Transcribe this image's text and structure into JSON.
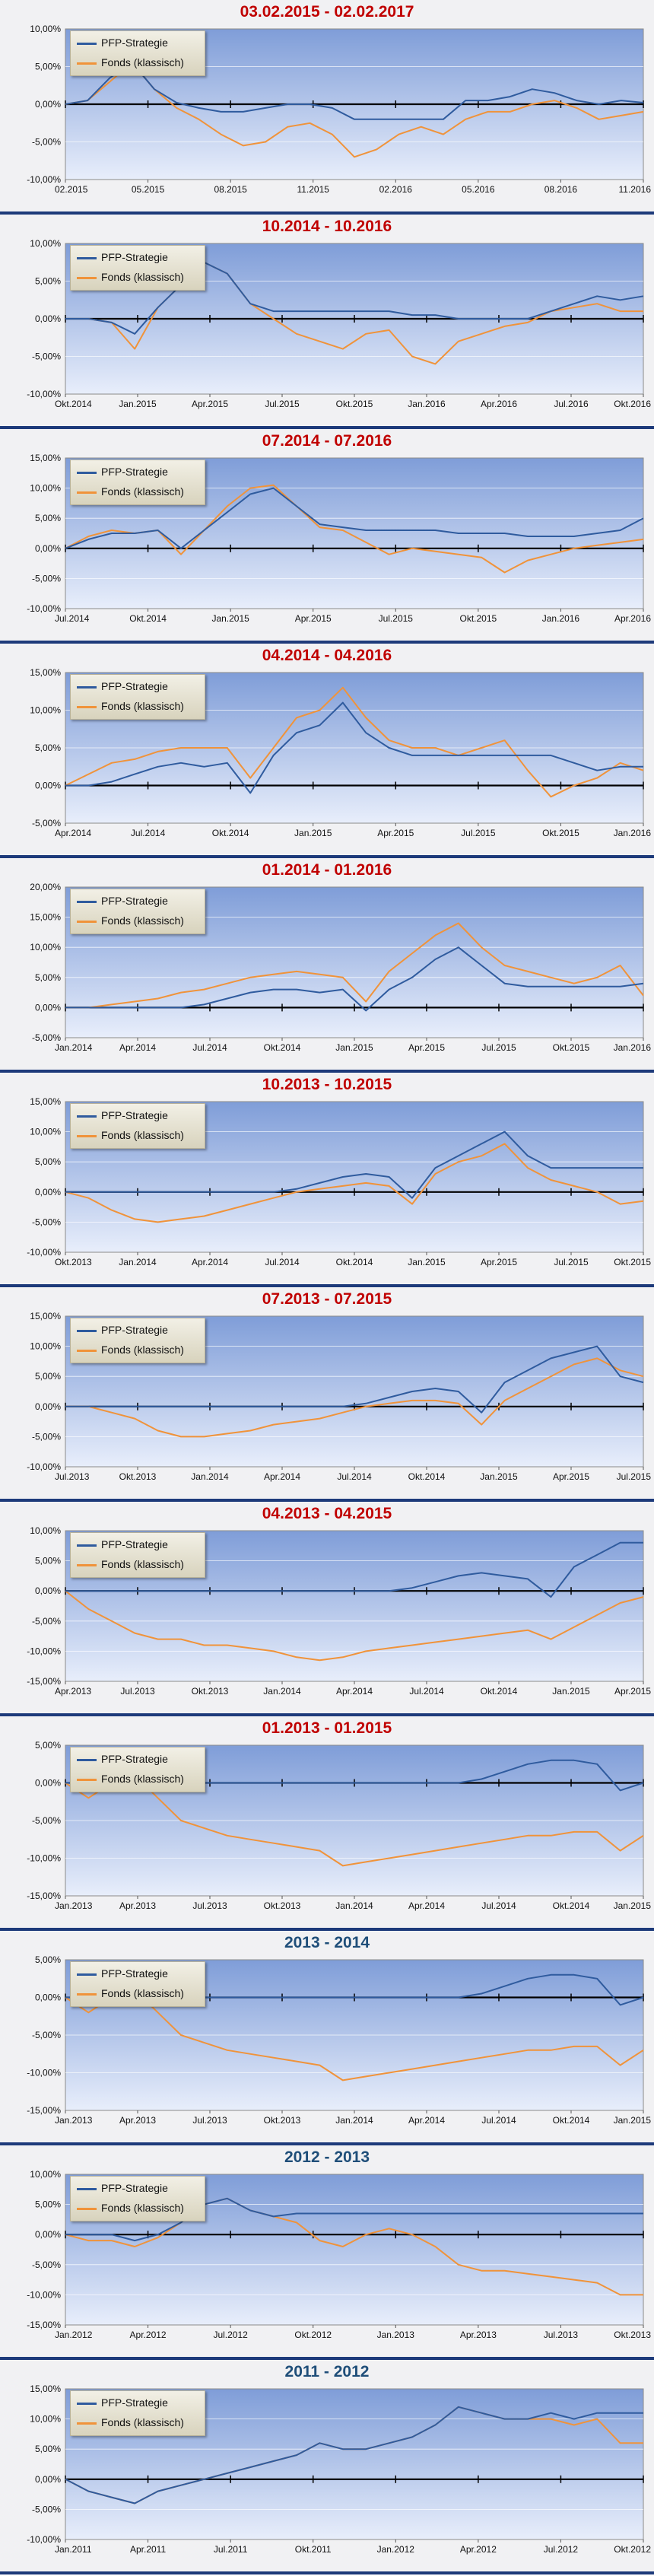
{
  "chart_data": [
    {
      "type": "line",
      "title": "03.02.2015 - 02.02.2017",
      "title_color": "#c00000",
      "ylim": [
        -10,
        10
      ],
      "yticks": [
        -10,
        -5,
        0,
        5,
        10
      ],
      "xticks": [
        "02.2015",
        "05.2015",
        "08.2015",
        "11.2015",
        "02.2016",
        "05.2016",
        "08.2016",
        "11.2016"
      ],
      "series": [
        {
          "name": "PFP-Strategie",
          "color": "#2f5b9e",
          "values": [
            0,
            0.5,
            3.5,
            5.5,
            2,
            0.2,
            -0.5,
            -1,
            -1,
            -0.5,
            0,
            0,
            -0.5,
            -2,
            -2,
            -2,
            -2,
            -2,
            0.5,
            0.5,
            1,
            2,
            1.5,
            0.5,
            0,
            0.5,
            0.2
          ]
        },
        {
          "name": "Fonds (klassisch)",
          "color": "#f0933a",
          "values": [
            0,
            0.5,
            3,
            5.5,
            2,
            -0.5,
            -2,
            -4,
            -5.5,
            -5,
            -3,
            -2.5,
            -4,
            -7,
            -6,
            -4,
            -3,
            -4,
            -2,
            -1,
            -1,
            0,
            0.5,
            -0.5,
            -2,
            -1.5,
            -1
          ]
        }
      ]
    },
    {
      "type": "line",
      "title": "10.2014 - 10.2016",
      "title_color": "#c00000",
      "ylim": [
        -10,
        10
      ],
      "yticks": [
        -10,
        -5,
        0,
        5,
        10
      ],
      "xticks": [
        "Okt.2014",
        "Jan.2015",
        "Apr.2015",
        "Jul.2015",
        "Okt.2015",
        "Jan.2016",
        "Apr.2016",
        "Jul.2016",
        "Okt.2016"
      ],
      "series": [
        {
          "name": "PFP-Strategie",
          "color": "#2f5b9e",
          "values": [
            0,
            0,
            -0.5,
            -2,
            1.5,
            4.5,
            7.5,
            6,
            2,
            1,
            1,
            1,
            1,
            1,
            1,
            0.5,
            0.5,
            0,
            0,
            0,
            0,
            1,
            2,
            3,
            2.5,
            3
          ]
        },
        {
          "name": "Fonds (klassisch)",
          "color": "#f0933a",
          "values": [
            0,
            0,
            -0.5,
            -4,
            1.5,
            4.5,
            7.5,
            6,
            2,
            0,
            -2,
            -3,
            -4,
            -2,
            -1.5,
            -5,
            -6,
            -3,
            -2,
            -1,
            -0.5,
            1,
            1.5,
            2,
            1,
            1
          ]
        }
      ]
    },
    {
      "type": "line",
      "title": "07.2014 - 07.2016",
      "title_color": "#c00000",
      "ylim": [
        -10,
        15
      ],
      "yticks": [
        -10,
        -5,
        0,
        5,
        10,
        15
      ],
      "xticks": [
        "Jul.2014",
        "Okt.2014",
        "Jan.2015",
        "Apr.2015",
        "Jul.2015",
        "Okt.2015",
        "Jan.2016",
        "Apr.2016"
      ],
      "series": [
        {
          "name": "PFP-Strategie",
          "color": "#2f5b9e",
          "values": [
            0,
            1.5,
            2.5,
            2.5,
            3,
            0,
            3,
            6,
            9,
            10,
            7,
            4,
            3.5,
            3,
            3,
            3,
            3,
            2.5,
            2.5,
            2.5,
            2,
            2,
            2,
            2.5,
            3,
            5
          ]
        },
        {
          "name": "Fonds (klassisch)",
          "color": "#f0933a",
          "values": [
            0,
            2,
            3,
            2.5,
            3,
            -1,
            3,
            7,
            10,
            10.5,
            7,
            3.5,
            3,
            1,
            -1,
            0,
            -0.5,
            -1,
            -1.5,
            -4,
            -2,
            -1,
            0,
            0.5,
            1,
            1.5
          ]
        }
      ]
    },
    {
      "type": "line",
      "title": "04.2014 - 04.2016",
      "title_color": "#c00000",
      "ylim": [
        -5,
        15
      ],
      "yticks": [
        -5,
        0,
        5,
        10,
        15
      ],
      "xticks": [
        "Apr.2014",
        "Jul.2014",
        "Okt.2014",
        "Jan.2015",
        "Apr.2015",
        "Jul.2015",
        "Okt.2015",
        "Jan.2016"
      ],
      "series": [
        {
          "name": "PFP-Strategie",
          "color": "#2f5b9e",
          "values": [
            0,
            0,
            0.5,
            1.5,
            2.5,
            3,
            2.5,
            3,
            -1,
            4,
            7,
            8,
            11,
            7,
            5,
            4,
            4,
            4,
            4,
            4,
            4,
            4,
            3,
            2,
            2.5,
            2.5
          ]
        },
        {
          "name": "Fonds (klassisch)",
          "color": "#f0933a",
          "values": [
            0,
            1.5,
            3,
            3.5,
            4.5,
            5,
            5,
            5,
            1,
            5,
            9,
            10,
            13,
            9,
            6,
            5,
            5,
            4,
            5,
            6,
            2,
            -1.5,
            0,
            1,
            3,
            2
          ]
        }
      ]
    },
    {
      "type": "line",
      "title": "01.2014 - 01.2016",
      "title_color": "#c00000",
      "ylim": [
        -5,
        20
      ],
      "yticks": [
        -5,
        0,
        5,
        10,
        15,
        20
      ],
      "xticks": [
        "Jan.2014",
        "Apr.2014",
        "Jul.2014",
        "Okt.2014",
        "Jan.2015",
        "Apr.2015",
        "Jul.2015",
        "Okt.2015",
        "Jan.2016"
      ],
      "series": [
        {
          "name": "PFP-Strategie",
          "color": "#2f5b9e",
          "values": [
            0,
            0,
            0,
            0,
            0,
            0,
            0.5,
            1.5,
            2.5,
            3,
            3,
            2.5,
            3,
            -0.5,
            3,
            5,
            8,
            10,
            7,
            4,
            3.5,
            3.5,
            3.5,
            3.5,
            3.5,
            4
          ]
        },
        {
          "name": "Fonds (klassisch)",
          "color": "#f0933a",
          "values": [
            0,
            0,
            0.5,
            1,
            1.5,
            2.5,
            3,
            4,
            5,
            5.5,
            6,
            5.5,
            5,
            1,
            6,
            9,
            12,
            14,
            10,
            7,
            6,
            5,
            4,
            5,
            7,
            2
          ]
        }
      ]
    },
    {
      "type": "line",
      "title": "10.2013 - 10.2015",
      "title_color": "#c00000",
      "ylim": [
        -10,
        15
      ],
      "yticks": [
        -10,
        -5,
        0,
        5,
        10,
        15
      ],
      "xticks": [
        "Okt.2013",
        "Jan.2014",
        "Apr.2014",
        "Jul.2014",
        "Okt.2014",
        "Jan.2015",
        "Apr.2015",
        "Jul.2015",
        "Okt.2015"
      ],
      "series": [
        {
          "name": "PFP-Strategie",
          "color": "#2f5b9e",
          "values": [
            0,
            0,
            0,
            0,
            0,
            0,
            0,
            0,
            0,
            0,
            0.5,
            1.5,
            2.5,
            3,
            2.5,
            -1,
            4,
            6,
            8,
            10,
            6,
            4,
            4,
            4,
            4,
            4
          ]
        },
        {
          "name": "Fonds (klassisch)",
          "color": "#f0933a",
          "values": [
            0,
            -1,
            -3,
            -4.5,
            -5,
            -4.5,
            -4,
            -3,
            -2,
            -1,
            0,
            0.5,
            1,
            1.5,
            1,
            -2,
            3,
            5,
            6,
            8,
            4,
            2,
            1,
            0,
            -2,
            -1.5
          ]
        }
      ]
    },
    {
      "type": "line",
      "title": "07.2013 - 07.2015",
      "title_color": "#c00000",
      "ylim": [
        -10,
        15
      ],
      "yticks": [
        -10,
        -5,
        0,
        5,
        10,
        15
      ],
      "xticks": [
        "Jul.2013",
        "Okt.2013",
        "Jan.2014",
        "Apr.2014",
        "Jul.2014",
        "Okt.2014",
        "Jan.2015",
        "Apr.2015",
        "Jul.2015"
      ],
      "series": [
        {
          "name": "PFP-Strategie",
          "color": "#2f5b9e",
          "values": [
            0,
            0,
            0,
            0,
            0,
            0,
            0,
            0,
            0,
            0,
            0,
            0,
            0,
            0.5,
            1.5,
            2.5,
            3,
            2.5,
            -1,
            4,
            6,
            8,
            9,
            10,
            5,
            4
          ]
        },
        {
          "name": "Fonds (klassisch)",
          "color": "#f0933a",
          "values": [
            0,
            0,
            -1,
            -2,
            -4,
            -5,
            -5,
            -4.5,
            -4,
            -3,
            -2.5,
            -2,
            -1,
            0,
            0.5,
            1,
            1,
            0.5,
            -3,
            1,
            3,
            5,
            7,
            8,
            6,
            5
          ]
        }
      ]
    },
    {
      "type": "line",
      "title": "04.2013 - 04.2015",
      "title_color": "#c00000",
      "ylim": [
        -15,
        10
      ],
      "yticks": [
        -15,
        -10,
        -5,
        0,
        5,
        10
      ],
      "xticks": [
        "Apr.2013",
        "Jul.2013",
        "Okt.2013",
        "Jan.2014",
        "Apr.2014",
        "Jul.2014",
        "Okt.2014",
        "Jan.2015",
        "Apr.2015"
      ],
      "series": [
        {
          "name": "PFP-Strategie",
          "color": "#2f5b9e",
          "values": [
            0,
            0,
            0,
            0,
            0,
            0,
            0,
            0,
            0,
            0,
            0,
            0,
            0,
            0,
            0,
            0.5,
            1.5,
            2.5,
            3,
            2.5,
            2,
            -1,
            4,
            6,
            8,
            8
          ]
        },
        {
          "name": "Fonds (klassisch)",
          "color": "#f0933a",
          "values": [
            0,
            -3,
            -5,
            -7,
            -8,
            -8,
            -9,
            -9,
            -9.5,
            -10,
            -11,
            -11.5,
            -11,
            -10,
            -9.5,
            -9,
            -8.5,
            -8,
            -7.5,
            -7,
            -6.5,
            -8,
            -6,
            -4,
            -2,
            -1
          ]
        }
      ]
    },
    {
      "type": "line",
      "title": "01.2013 - 01.2015",
      "title_color": "#c00000",
      "ylim": [
        -15,
        5
      ],
      "yticks": [
        -15,
        -10,
        -5,
        0,
        5
      ],
      "xticks": [
        "Jan.2013",
        "Apr.2013",
        "Jul.2013",
        "Okt.2013",
        "Jan.2014",
        "Apr.2014",
        "Jul.2014",
        "Okt.2014",
        "Jan.2015"
      ],
      "series": [
        {
          "name": "PFP-Strategie",
          "color": "#2f5b9e",
          "values": [
            0,
            0,
            0,
            0,
            0,
            0,
            0,
            0,
            0,
            0,
            0,
            0,
            0,
            0,
            0,
            0,
            0,
            0,
            0.5,
            1.5,
            2.5,
            3,
            3,
            2.5,
            -1,
            0
          ]
        },
        {
          "name": "Fonds (klassisch)",
          "color": "#f0933a",
          "values": [
            0,
            -2,
            0,
            1,
            -2,
            -5,
            -6,
            -7,
            -7.5,
            -8,
            -8.5,
            -9,
            -11,
            -10.5,
            -10,
            -9.5,
            -9,
            -8.5,
            -8,
            -7.5,
            -7,
            -7,
            -6.5,
            -6.5,
            -9,
            -7
          ]
        }
      ]
    },
    {
      "type": "line",
      "title": "2013 - 2014",
      "title_color": "#1f4e79",
      "ylim": [
        -15,
        5
      ],
      "yticks": [
        -15,
        -10,
        -5,
        0,
        5
      ],
      "xticks": [
        "Jan.2013",
        "Apr.2013",
        "Jul.2013",
        "Okt.2013",
        "Jan.2014",
        "Apr.2014",
        "Jul.2014",
        "Okt.2014",
        "Jan.2015"
      ],
      "series": [
        {
          "name": "PFP-Strategie",
          "color": "#2f5b9e",
          "values": [
            0,
            0,
            0,
            0,
            0,
            0,
            0,
            0,
            0,
            0,
            0,
            0,
            0,
            0,
            0,
            0,
            0,
            0,
            0.5,
            1.5,
            2.5,
            3,
            3,
            2.5,
            -1,
            0
          ]
        },
        {
          "name": "Fonds (klassisch)",
          "color": "#f0933a",
          "values": [
            0,
            -2,
            0,
            1,
            -2,
            -5,
            -6,
            -7,
            -7.5,
            -8,
            -8.5,
            -9,
            -11,
            -10.5,
            -10,
            -9.5,
            -9,
            -8.5,
            -8,
            -7.5,
            -7,
            -7,
            -6.5,
            -6.5,
            -9,
            -7
          ]
        }
      ]
    },
    {
      "type": "line",
      "title": "2012 - 2013",
      "title_color": "#1f4e79",
      "ylim": [
        -15,
        10
      ],
      "yticks": [
        -15,
        -10,
        -5,
        0,
        5,
        10
      ],
      "xticks": [
        "Jan.2012",
        "Apr.2012",
        "Jul.2012",
        "Okt.2012",
        "Jan.2013",
        "Apr.2013",
        "Jul.2013",
        "Okt.2013"
      ],
      "series": [
        {
          "name": "PFP-Strategie",
          "color": "#2f5b9e",
          "values": [
            0,
            0,
            0,
            -1,
            0,
            2,
            5,
            6,
            4,
            3,
            3.5,
            3.5,
            3.5,
            3.5,
            3.5,
            3.5,
            3.5,
            3.5,
            3.5,
            3.5,
            3.5,
            3.5,
            3.5,
            3.5,
            3.5,
            3.5
          ]
        },
        {
          "name": "Fonds (klassisch)",
          "color": "#f0933a",
          "values": [
            0,
            -1,
            -1,
            -2,
            -0.5,
            2,
            5,
            6,
            4,
            3,
            2,
            -1,
            -2,
            0,
            1,
            0,
            -2,
            -5,
            -6,
            -6,
            -6.5,
            -7,
            -7.5,
            -8,
            -10,
            -10
          ]
        }
      ]
    },
    {
      "type": "line",
      "title": "2011 - 2012",
      "title_color": "#1f4e79",
      "ylim": [
        -10,
        15
      ],
      "yticks": [
        -10,
        -5,
        0,
        5,
        10,
        15
      ],
      "xticks": [
        "Jan.2011",
        "Apr.2011",
        "Jul.2011",
        "Okt.2011",
        "Jan.2012",
        "Apr.2012",
        "Jul.2012",
        "Okt.2012"
      ],
      "series": [
        {
          "name": "PFP-Strategie",
          "color": "#2f5b9e",
          "values": [
            0,
            -2,
            -3,
            -4,
            -2,
            -1,
            0,
            1,
            2,
            3,
            4,
            6,
            5,
            5,
            6,
            7,
            9,
            12,
            11,
            10,
            10,
            11,
            10,
            11,
            11,
            11
          ]
        },
        {
          "name": "Fonds (klassisch)",
          "color": "#f0933a",
          "values": [
            0,
            -2,
            -3,
            -4,
            -2,
            -1,
            0,
            1,
            2,
            3,
            4,
            6,
            5,
            5,
            6,
            7,
            9,
            12,
            11,
            10,
            10,
            10,
            9,
            10,
            6,
            6
          ]
        }
      ]
    }
  ]
}
